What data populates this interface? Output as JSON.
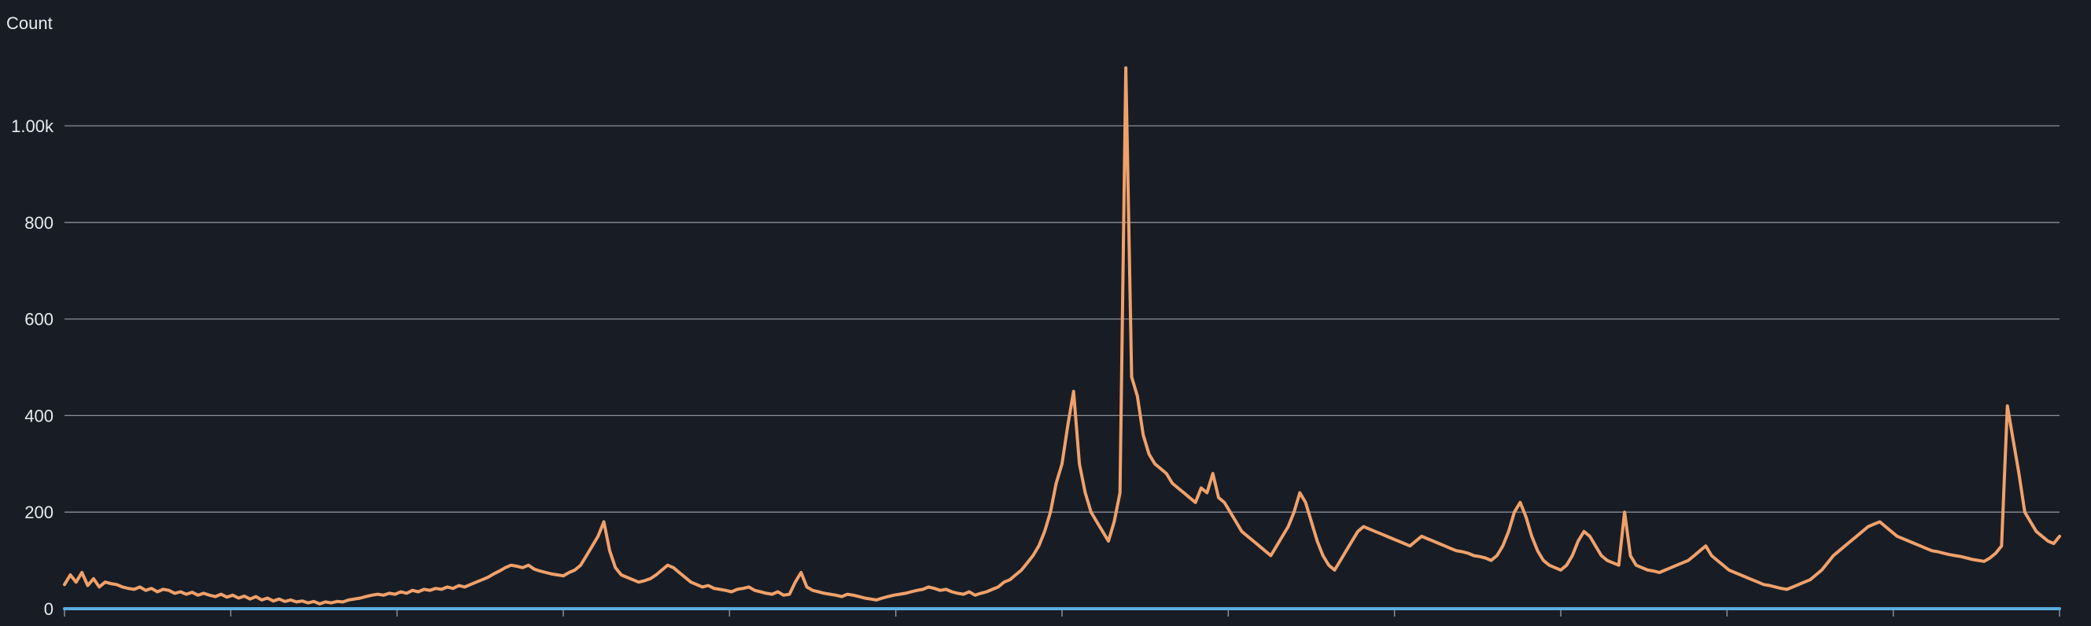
{
  "chart_data": {
    "type": "line",
    "title": "",
    "xlabel": "",
    "ylabel": "Count",
    "ylim": [
      0,
      1100
    ],
    "yticks": [
      {
        "value": 0,
        "label": "0"
      },
      {
        "value": 200,
        "label": "200"
      },
      {
        "value": 400,
        "label": "400"
      },
      {
        "value": 600,
        "label": "600"
      },
      {
        "value": 800,
        "label": "800"
      },
      {
        "value": 1000,
        "label": "1.00k"
      }
    ],
    "grid": true,
    "x_tick_count": 12,
    "series": [
      {
        "color": "#f0a16b",
        "values": [
          50,
          70,
          55,
          75,
          48,
          62,
          45,
          55,
          52,
          50,
          45,
          42,
          40,
          45,
          38,
          42,
          35,
          40,
          38,
          32,
          35,
          30,
          34,
          28,
          32,
          28,
          25,
          30,
          24,
          28,
          22,
          26,
          20,
          25,
          18,
          22,
          16,
          20,
          15,
          18,
          14,
          16,
          12,
          15,
          10,
          14,
          12,
          15,
          14,
          18,
          20,
          22,
          25,
          28,
          30,
          28,
          32,
          30,
          35,
          32,
          38,
          35,
          40,
          38,
          42,
          40,
          45,
          42,
          48,
          45,
          50,
          55,
          60,
          65,
          72,
          78,
          85,
          90,
          88,
          85,
          90,
          82,
          78,
          75,
          72,
          70,
          68,
          75,
          80,
          90,
          110,
          130,
          150,
          180,
          120,
          85,
          70,
          65,
          60,
          55,
          58,
          62,
          70,
          80,
          90,
          85,
          75,
          65,
          55,
          50,
          45,
          48,
          42,
          40,
          38,
          35,
          40,
          42,
          45,
          38,
          35,
          32,
          30,
          35,
          28,
          30,
          55,
          75,
          45,
          38,
          35,
          32,
          30,
          28,
          25,
          30,
          28,
          25,
          22,
          20,
          18,
          22,
          25,
          28,
          30,
          32,
          35,
          38,
          40,
          45,
          42,
          38,
          40,
          35,
          32,
          30,
          35,
          28,
          32,
          35,
          40,
          45,
          55,
          60,
          70,
          80,
          95,
          110,
          130,
          160,
          200,
          260,
          300,
          380,
          450,
          300,
          240,
          200,
          180,
          160,
          140,
          180,
          240,
          1120,
          480,
          440,
          360,
          320,
          300,
          290,
          280,
          260,
          250,
          240,
          230,
          220,
          250,
          240,
          280,
          230,
          220,
          200,
          180,
          160,
          150,
          140,
          130,
          120,
          110,
          130,
          150,
          170,
          200,
          240,
          220,
          180,
          140,
          110,
          90,
          80,
          100,
          120,
          140,
          160,
          170,
          165,
          160,
          155,
          150,
          145,
          140,
          135,
          130,
          140,
          150,
          145,
          140,
          135,
          130,
          125,
          120,
          118,
          115,
          110,
          108,
          105,
          100,
          110,
          130,
          160,
          200,
          220,
          190,
          150,
          120,
          100,
          90,
          85,
          80,
          90,
          110,
          140,
          160,
          150,
          130,
          110,
          100,
          95,
          90,
          200,
          110,
          90,
          85,
          80,
          78,
          75,
          80,
          85,
          90,
          95,
          100,
          110,
          120,
          130,
          110,
          100,
          90,
          80,
          75,
          70,
          65,
          60,
          55,
          50,
          48,
          45,
          42,
          40,
          45,
          50,
          55,
          60,
          70,
          80,
          95,
          110,
          120,
          130,
          140,
          150,
          160,
          170,
          175,
          180,
          170,
          160,
          150,
          145,
          140,
          135,
          130,
          125,
          120,
          118,
          115,
          112,
          110,
          108,
          105,
          102,
          100,
          98,
          105,
          115,
          130,
          420,
          350,
          280,
          200,
          180,
          160,
          150,
          140,
          135,
          150
        ]
      },
      {
        "color": "#5aaee0",
        "values": [
          0,
          0
        ]
      }
    ]
  }
}
